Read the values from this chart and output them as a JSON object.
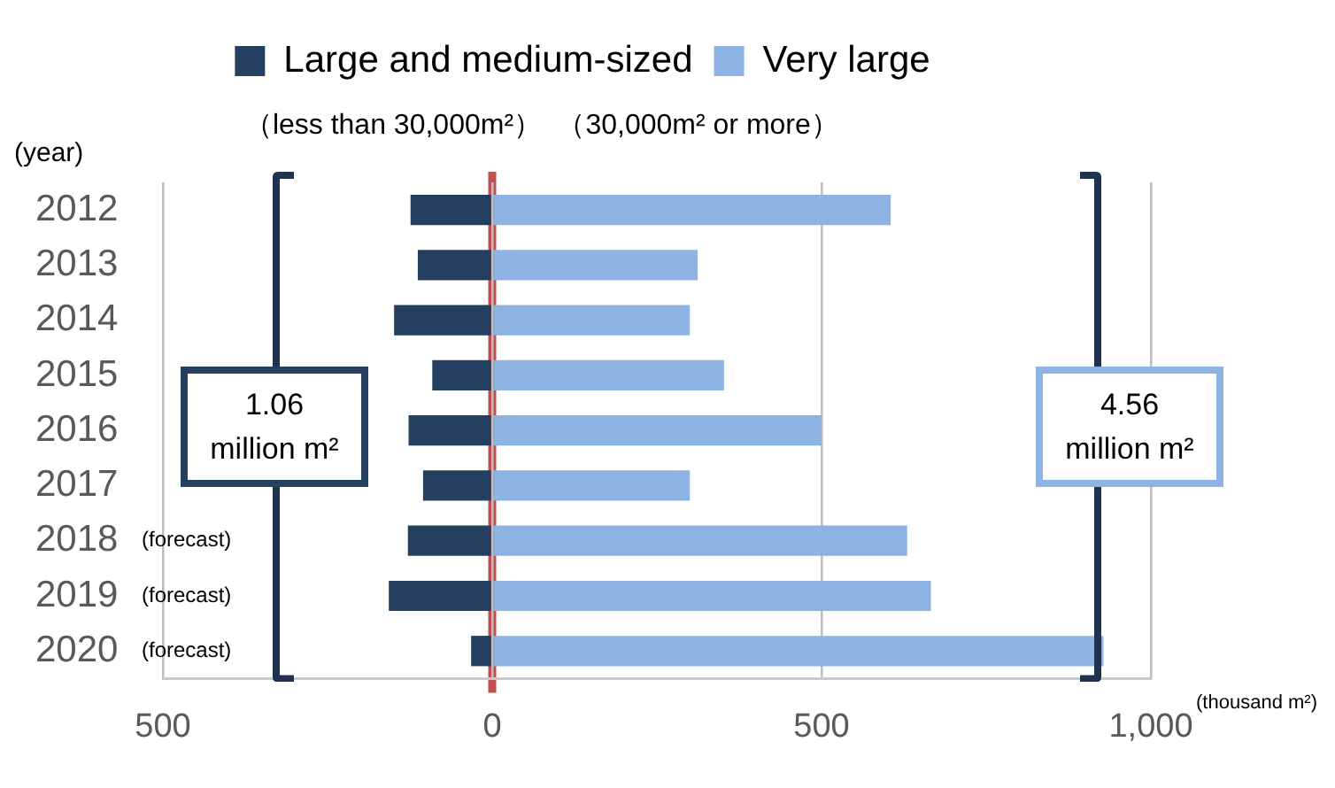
{
  "chart_data": {
    "type": "bar",
    "orientation": "horizontal",
    "stacked": true,
    "categories": [
      "2012",
      "2013",
      "2014",
      "2015",
      "2016",
      "2017",
      "2018 (forecast)",
      "2019 (forecast)",
      "2020 (forecast)"
    ],
    "series": [
      {
        "name": "Large and medium-sized",
        "color": "#243f60",
        "values": [
          -124,
          -113,
          -149,
          -91,
          -127,
          -105,
          -128,
          -157,
          -32
        ]
      },
      {
        "name": "Very large",
        "color": "#8db3e2",
        "values": [
          605,
          312,
          300,
          352,
          500,
          300,
          630,
          666,
          928
        ]
      }
    ],
    "xlim": [
      -500,
      1000
    ],
    "xticks": [
      {
        "value": -500,
        "label": "500"
      },
      0,
      500,
      {
        "value": 1000,
        "label": "1,000"
      }
    ],
    "xlabel": "(thousand m²)",
    "ylabel": "(year)",
    "annotations": [
      "（less than 30,000m²）",
      "（30,000m² or more）",
      "1.06 million m²",
      "4.56 million m²"
    ],
    "ref_lines": [
      {
        "axis": "x",
        "value": 0,
        "color": "#c0504d"
      }
    ],
    "grid": "x",
    "legend": "top"
  }
}
